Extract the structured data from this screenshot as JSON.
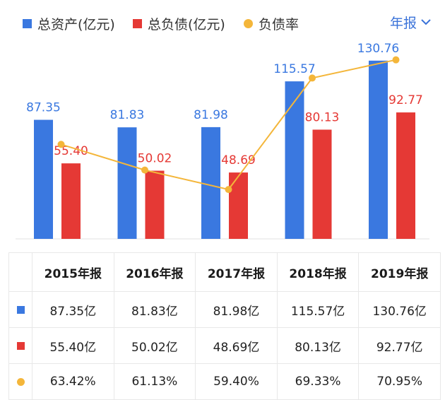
{
  "legend": {
    "assets": "总资产(亿元)",
    "liabilities": "总负债(亿元)",
    "ratio": "负债率"
  },
  "period_selector": "年报",
  "colors": {
    "assets": "#3a78e0",
    "liabilities": "#e53935",
    "ratio": "#f4b63a"
  },
  "chart_data": {
    "type": "bar",
    "categories": [
      "2015年报",
      "2016年报",
      "2017年报",
      "2018年报",
      "2019年报"
    ],
    "series": [
      {
        "name": "总资产(亿元)",
        "type": "bar",
        "values": [
          87.35,
          81.83,
          81.98,
          115.57,
          130.76
        ]
      },
      {
        "name": "总负债(亿元)",
        "type": "bar",
        "values": [
          55.4,
          50.02,
          48.69,
          80.13,
          92.77
        ]
      },
      {
        "name": "负债率",
        "type": "line",
        "values": [
          63.42,
          61.13,
          59.4,
          69.33,
          70.95
        ]
      }
    ],
    "data_labels": {
      "assets": [
        "87.35",
        "81.83",
        "81.98",
        "115.57",
        "130.76"
      ],
      "liabilities": [
        "55.40",
        "50.02",
        "48.69",
        "80.13",
        "92.77"
      ]
    },
    "ylim": [
      0,
      140
    ],
    "ratio_ylim": [
      55,
      72
    ]
  },
  "table": {
    "headers": [
      "2015年报",
      "2016年报",
      "2017年报",
      "2018年报",
      "2019年报"
    ],
    "rows": [
      {
        "key": "assets",
        "cells": [
          "87.35亿",
          "81.83亿",
          "81.98亿",
          "115.57亿",
          "130.76亿"
        ]
      },
      {
        "key": "liabilities",
        "cells": [
          "55.40亿",
          "50.02亿",
          "48.69亿",
          "80.13亿",
          "92.77亿"
        ]
      },
      {
        "key": "ratio",
        "cells": [
          "63.42%",
          "61.13%",
          "59.40%",
          "69.33%",
          "70.95%"
        ]
      }
    ]
  }
}
